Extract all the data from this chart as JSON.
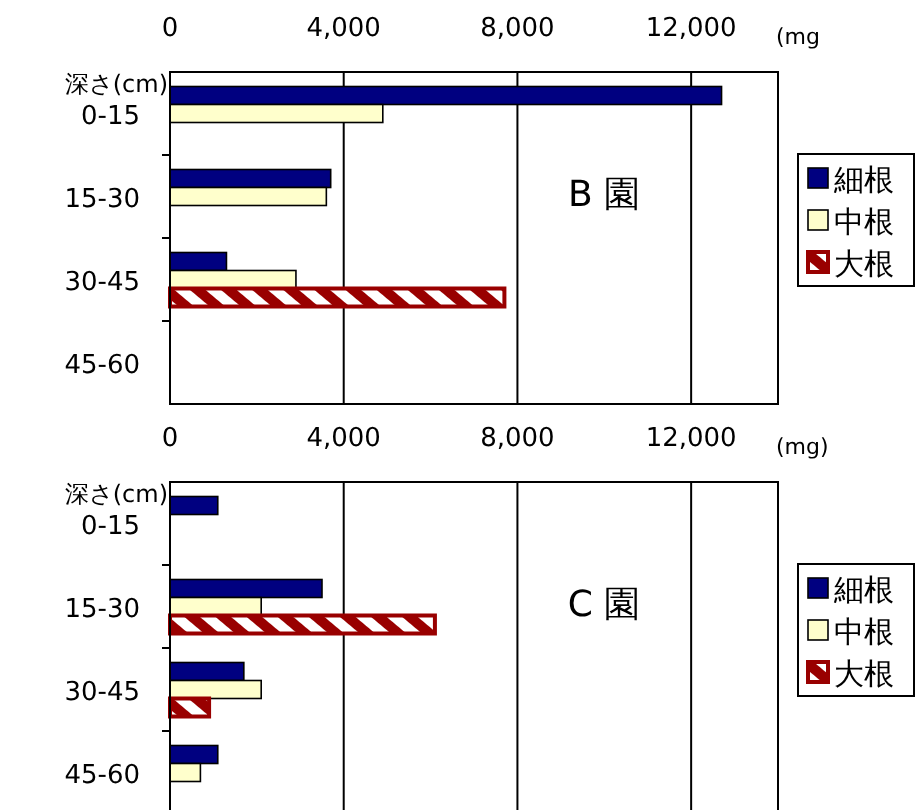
{
  "chart_data": [
    {
      "type": "bar",
      "orientation": "horizontal",
      "title": "B 園",
      "ylabel": "深さ(cm)",
      "xlabel": "(mg",
      "categories": [
        "0-15",
        "15-30",
        "30-45",
        "45-60"
      ],
      "series": [
        {
          "name": "細根",
          "color": "#000080",
          "values": [
            12700,
            3700,
            1300,
            null
          ]
        },
        {
          "name": "中根",
          "color": "#ffffcc",
          "values": [
            4900,
            3600,
            2900,
            null
          ]
        },
        {
          "name": "大根",
          "color": "#990000",
          "values": [
            null,
            null,
            7700,
            null
          ]
        }
      ],
      "xlim": [
        0,
        14000
      ],
      "xticks": [
        0,
        {
          "value": 4000,
          "label": "4,000"
        },
        {
          "value": 8000,
          "label": "8,000"
        },
        {
          "value": 12000,
          "label": "12,000"
        }
      ],
      "grid": "x",
      "legend": "right"
    },
    {
      "type": "bar",
      "orientation": "horizontal",
      "title": "C 園",
      "ylabel": "深さ(cm)",
      "xlabel": "(mg)",
      "categories": [
        "0-15",
        "15-30",
        "30-45",
        "45-60"
      ],
      "series": [
        {
          "name": "細根",
          "color": "#000080",
          "values": [
            1100,
            3500,
            1700,
            1100
          ]
        },
        {
          "name": "中根",
          "color": "#ffffcc",
          "values": [
            null,
            2100,
            2100,
            700
          ]
        },
        {
          "name": "大根",
          "color": "#990000",
          "values": [
            null,
            6100,
            900,
            null
          ]
        }
      ],
      "xlim": [
        0,
        14000
      ],
      "xticks": [
        0,
        {
          "value": 4000,
          "label": "4,000"
        },
        {
          "value": 8000,
          "label": "8,000"
        },
        {
          "value": 12000,
          "label": "12,000"
        }
      ],
      "grid": "x",
      "legend": "right"
    }
  ]
}
